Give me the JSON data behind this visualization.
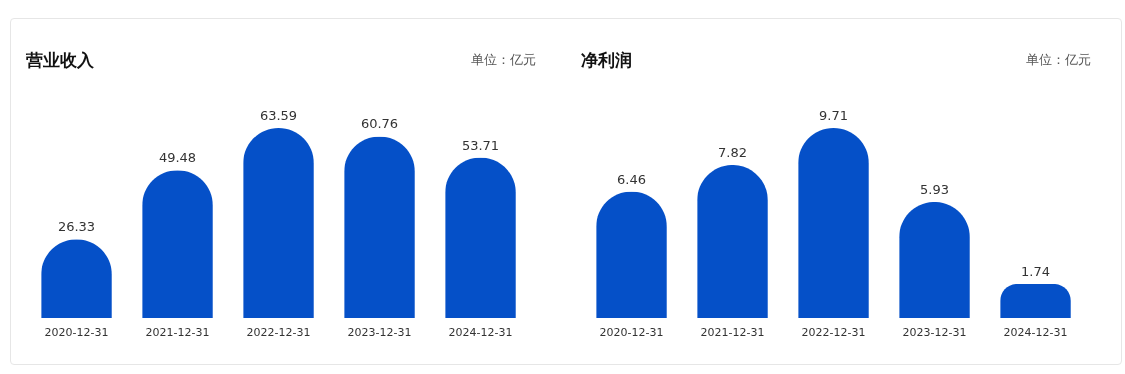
{
  "chart_data": [
    {
      "type": "bar",
      "title": "营业收入",
      "annotations": [
        "单位：亿元"
      ],
      "categories": [
        "2020-12-31",
        "2021-12-31",
        "2022-12-31",
        "2023-12-31",
        "2024-12-31"
      ],
      "values": [
        26.33,
        49.48,
        63.59,
        60.76,
        53.71
      ],
      "color": "#0550c8",
      "data_labels": true
    },
    {
      "type": "bar",
      "title": "净利润",
      "annotations": [
        "单位：亿元"
      ],
      "categories": [
        "2020-12-31",
        "2021-12-31",
        "2022-12-31",
        "2023-12-31",
        "2024-12-31"
      ],
      "values": [
        6.46,
        7.82,
        9.71,
        5.93,
        1.74
      ],
      "color": "#0550c8",
      "data_labels": true
    }
  ]
}
